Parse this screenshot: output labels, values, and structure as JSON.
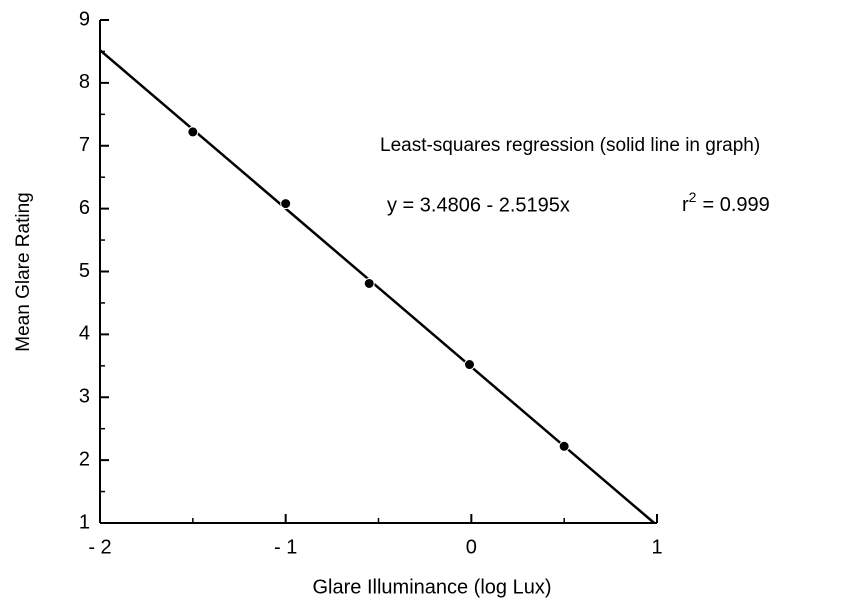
{
  "chart_data": {
    "type": "scatter",
    "x_label": "Glare Illuminance (log Lux)",
    "y_label": "Mean Glare Rating",
    "series": [
      {
        "name": "Mean glare rating",
        "color": "#000000",
        "x": [
          -1.5,
          -1.0,
          -0.55,
          -0.01,
          0.5
        ],
        "values": [
          7.22,
          6.08,
          4.81,
          3.52,
          2.22
        ]
      }
    ],
    "fit": {
      "color": "#000000",
      "x": [
        -2,
        0.985
      ],
      "values": [
        8.52,
        1.0
      ]
    },
    "annotations": {
      "method": "Least-squares regression (solid line in graph)",
      "equation": "y = 3.4806 - 2.5195x",
      "r2": {
        "base": "r",
        "sup": "2",
        "rest": "=  0.999"
      }
    },
    "xlim": [
      -2,
      1
    ],
    "ylim": [
      1,
      9
    ],
    "xticks": [
      {
        "value": -2,
        "label": "- 2"
      },
      {
        "value": -1,
        "label": "- 1"
      },
      0,
      1
    ],
    "xminorticks": [
      -1.5,
      -0.5,
      0.5
    ],
    "yticks": [
      1,
      2,
      3,
      4,
      5,
      6,
      7,
      8,
      9
    ],
    "yminorticks": [
      1.5,
      2.5,
      3.5,
      4.5,
      5.5,
      6.5,
      7.5,
      8.5
    ],
    "grid": false
  }
}
